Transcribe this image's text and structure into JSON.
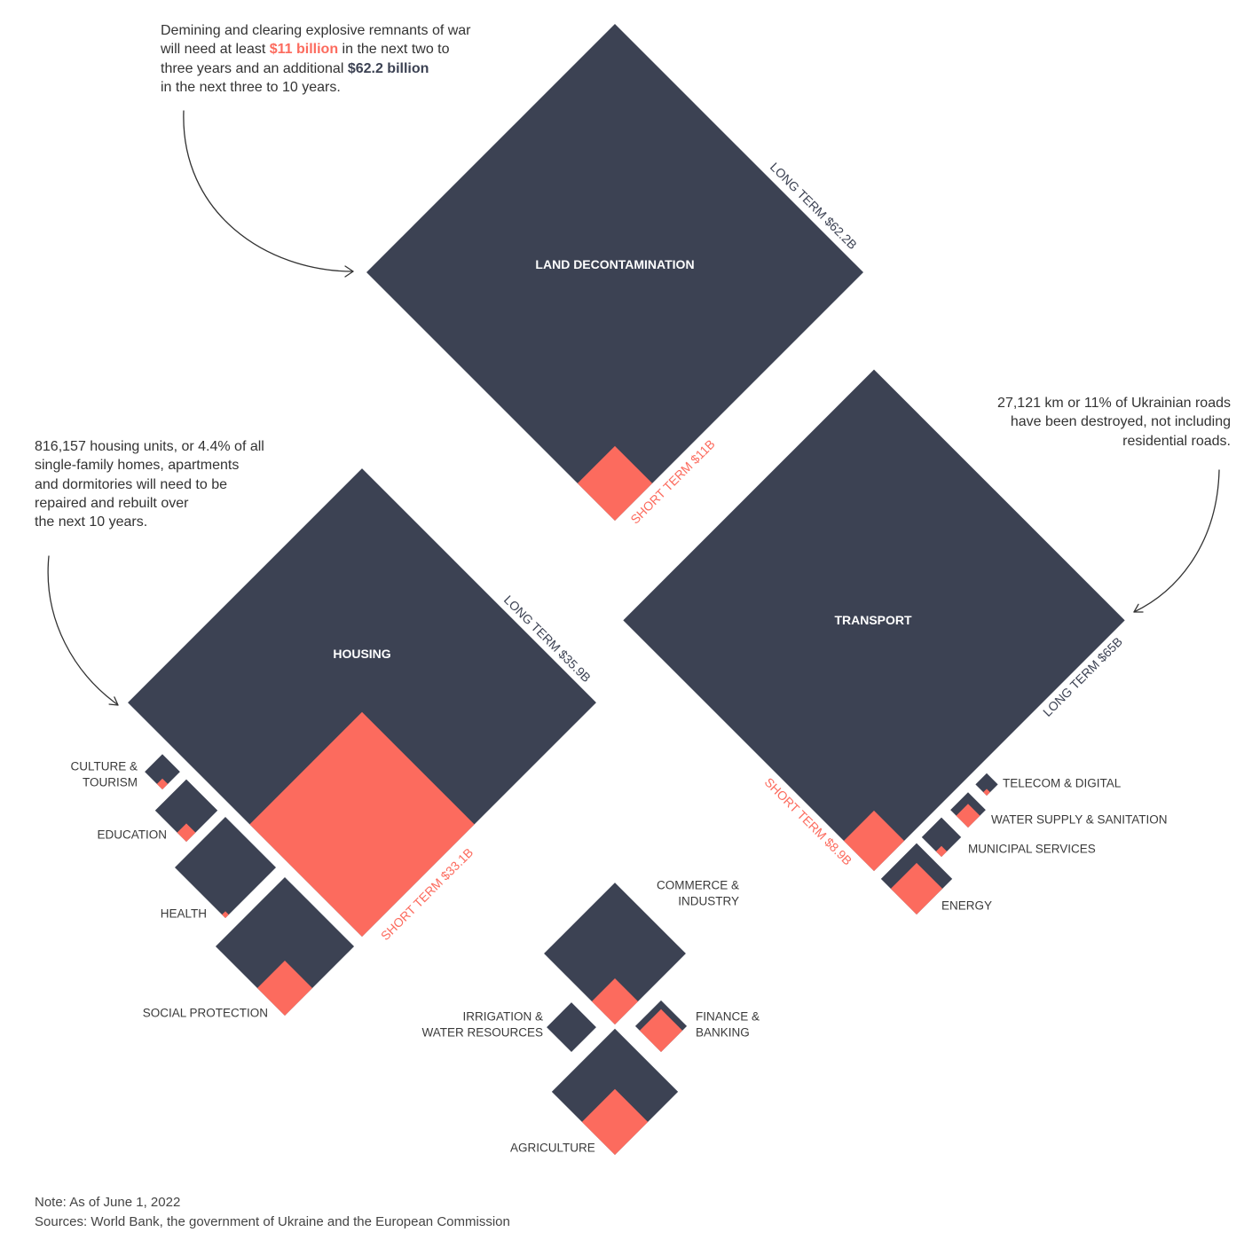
{
  "annotations": {
    "land_decontamination": {
      "line1": "Demining and clearing explosive remnants of war",
      "line2_before": "will need at least ",
      "short_term_amount": "$11 billion",
      "line2_after": " in the next two to",
      "line3_before": "three years and an additional ",
      "long_term_amount": "$62.2 billion",
      "line4": "in the next three to 10 years."
    },
    "housing": [
      "816,157 housing units, or 4.4% of all",
      "single-family homes, apartments",
      "and dormitories will need to be",
      "repaired and rebuilt over",
      "the next 10 years."
    ],
    "transport": [
      "27,121 km or 11% of Ukrainian roads",
      "have been destroyed, not including",
      "residential roads."
    ]
  },
  "footer": {
    "note": "Note: As of June 1, 2022",
    "sources": "Sources: World Bank, the government of Ukraine and the European Commission"
  },
  "colors": {
    "long_term": "#3c4253",
    "short_term": "#fc6b5e"
  },
  "chart_data": {
    "type": "bar",
    "sectors": [
      {
        "label_lines": [
          "LAND DECONTAMINATION"
        ],
        "long_term": 62.2,
        "short_term": 11,
        "long_label": "LONG TERM $62.2B",
        "short_label": "SHORT TERM $11B"
      },
      {
        "label_lines": [
          "HOUSING"
        ],
        "long_term": 35.9,
        "short_term": 33.1,
        "long_label": "LONG TERM $35.9B",
        "short_label": "SHORT TERM $33.1B"
      },
      {
        "label_lines": [
          "TRANSPORT"
        ],
        "long_term": 65,
        "short_term": 8.9,
        "long_label": "LONG TERM $65B",
        "short_label": "SHORT TERM $8.9B"
      },
      {
        "label_lines": [
          "CULTURE &",
          "TOURISM"
        ],
        "long_term": 3.6,
        "short_term": 1.6
      },
      {
        "label_lines": [
          "EDUCATION"
        ],
        "long_term": 6.5,
        "short_term": 2.7
      },
      {
        "label_lines": [
          "HEALTH"
        ],
        "long_term": 13.9,
        "short_term": 1.0
      },
      {
        "label_lines": [
          "SOCIAL PROTECTION"
        ],
        "long_term": 12.3,
        "short_term": 8.1
      },
      {
        "label_lines": [
          "TELECOM & DIGITAL"
        ],
        "long_term": 2.3,
        "short_term": 1.0
      },
      {
        "label_lines": [
          "WATER SUPPLY & SANITATION"
        ],
        "long_term": 1.7,
        "short_term": 3.5
      },
      {
        "label_lines": [
          "MUNICIPAL SERVICES"
        ],
        "long_term": 4.2,
        "short_term": 1.6
      },
      {
        "label_lines": [
          "ENERGY"
        ],
        "long_term": 2.9,
        "short_term": 7.6
      },
      {
        "label_lines": [
          "COMMERCE &",
          "INDUSTRY"
        ],
        "long_term": 14.1,
        "short_term": 6.8
      },
      {
        "label_lines": [
          "IRRIGATION &",
          "WATER RESOURCES"
        ],
        "long_term": 7.3,
        "short_term": 0
      },
      {
        "label_lines": [
          "FINANCE &",
          "BANKING"
        ],
        "long_term": 1.3,
        "short_term": 6.3
      },
      {
        "label_lines": [
          "AGRICULTURE"
        ],
        "long_term": 8.9,
        "short_term": 9.7
      }
    ]
  }
}
